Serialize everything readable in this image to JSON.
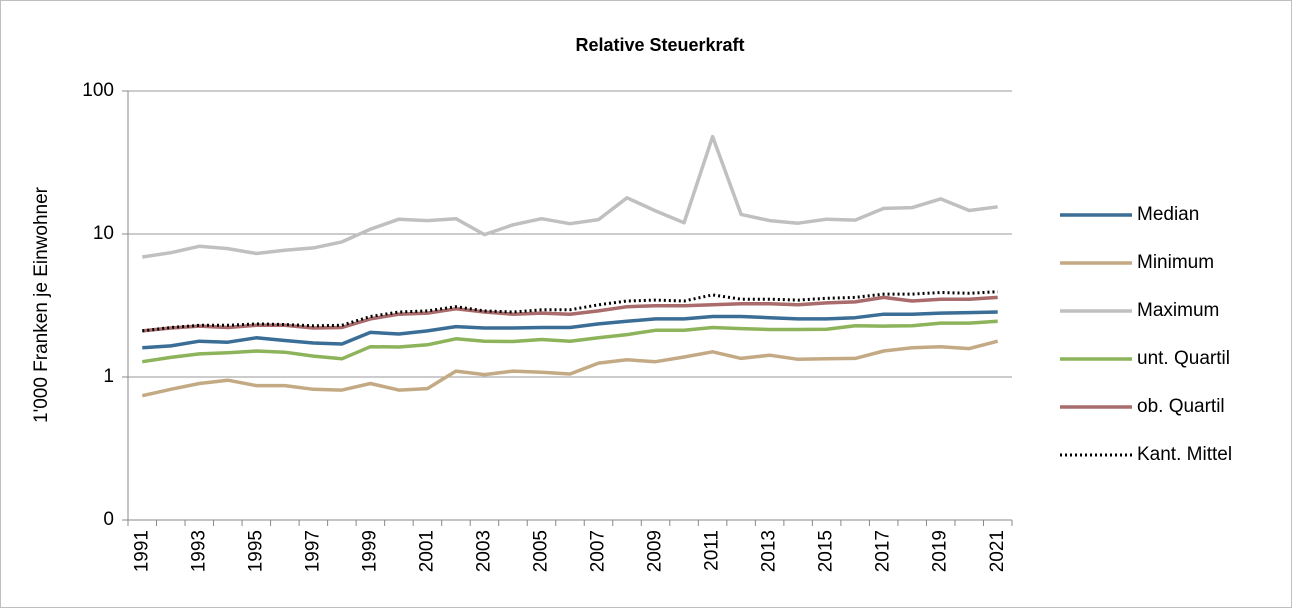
{
  "chart_data": {
    "type": "line",
    "title": "Relative Steuerkraft",
    "ylabel": "1'000 Franken je Einwohner",
    "log_scale": true,
    "grid": true,
    "legend": "right",
    "categories": [
      "1991",
      null,
      "1993",
      null,
      "1995",
      null,
      "1997",
      null,
      "1999",
      null,
      "2001",
      null,
      "2003",
      null,
      "2005",
      null,
      "2007",
      null,
      "2009",
      null,
      "2011",
      null,
      "2013",
      null,
      "2015",
      null,
      "2017",
      null,
      "2019",
      null,
      "2021"
    ],
    "ylim": [
      0.1,
      100
    ],
    "yticks": [
      {
        "value": 0.1,
        "label": "0"
      },
      1,
      10,
      100
    ],
    "series": [
      {
        "name": "Median",
        "color": "#3b6e96",
        "style": "solid",
        "values": [
          1.6,
          1.65,
          1.78,
          1.75,
          1.88,
          1.8,
          1.73,
          1.7,
          2.05,
          2.0,
          2.1,
          2.25,
          2.2,
          2.2,
          2.22,
          2.22,
          2.35,
          2.45,
          2.55,
          2.55,
          2.65,
          2.65,
          2.6,
          2.55,
          2.55,
          2.6,
          2.75,
          2.75,
          2.8,
          2.82,
          2.85
        ]
      },
      {
        "name": "Minimum",
        "color": "#c4aa84",
        "style": "solid",
        "values": [
          0.74,
          0.82,
          0.9,
          0.95,
          0.87,
          0.87,
          0.82,
          0.81,
          0.9,
          0.81,
          0.83,
          1.1,
          1.04,
          1.1,
          1.08,
          1.05,
          1.25,
          1.32,
          1.28,
          1.38,
          1.5,
          1.35,
          1.42,
          1.33,
          1.34,
          1.35,
          1.52,
          1.6,
          1.63,
          1.58,
          1.78
        ]
      },
      {
        "name": "Maximum",
        "color": "#c0c0c0",
        "style": "solid",
        "values": [
          6.9,
          7.4,
          8.2,
          7.9,
          7.3,
          7.7,
          8.0,
          8.8,
          10.8,
          12.7,
          12.4,
          12.8,
          9.9,
          11.6,
          12.8,
          11.8,
          12.6,
          17.9,
          14.5,
          12.0,
          48,
          13.7,
          12.4,
          11.9,
          12.7,
          12.5,
          15.1,
          15.3,
          17.6,
          14.6,
          15.5
        ]
      },
      {
        "name": "unt. Quartil",
        "color": "#8db35b",
        "style": "solid",
        "values": [
          1.28,
          1.37,
          1.45,
          1.48,
          1.52,
          1.49,
          1.4,
          1.34,
          1.63,
          1.62,
          1.68,
          1.85,
          1.78,
          1.77,
          1.83,
          1.78,
          1.88,
          1.98,
          2.12,
          2.12,
          2.22,
          2.18,
          2.15,
          2.15,
          2.16,
          2.28,
          2.27,
          2.28,
          2.38,
          2.38,
          2.45
        ]
      },
      {
        "name": "ob. Quartil",
        "color": "#a96b6b",
        "style": "solid",
        "values": [
          2.1,
          2.2,
          2.27,
          2.22,
          2.3,
          2.3,
          2.2,
          2.22,
          2.55,
          2.75,
          2.8,
          3.0,
          2.85,
          2.75,
          2.8,
          2.75,
          2.9,
          3.1,
          3.15,
          3.15,
          3.2,
          3.25,
          3.25,
          3.2,
          3.3,
          3.35,
          3.6,
          3.4,
          3.5,
          3.5,
          3.6
        ]
      },
      {
        "name": "Kant. Mittel",
        "color": "#000000",
        "style": "dotted",
        "values": [
          2.1,
          2.22,
          2.3,
          2.3,
          2.35,
          2.33,
          2.28,
          2.3,
          2.65,
          2.85,
          2.9,
          3.1,
          2.9,
          2.85,
          2.95,
          2.95,
          3.2,
          3.4,
          3.45,
          3.4,
          3.75,
          3.5,
          3.5,
          3.45,
          3.55,
          3.6,
          3.8,
          3.8,
          3.9,
          3.85,
          3.95
        ]
      }
    ]
  }
}
